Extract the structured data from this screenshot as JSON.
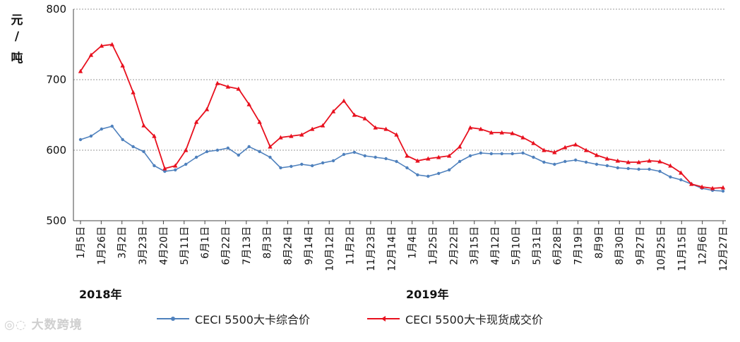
{
  "chart_data": {
    "type": "line",
    "ylabel": [
      "元",
      "/",
      "吨"
    ],
    "ylim": [
      500,
      800
    ],
    "yticks": [
      500,
      600,
      700,
      800
    ],
    "grid": true,
    "legend_position": "bottom",
    "x_tick_labels": [
      "1月5日",
      "1月26日",
      "3月2日",
      "3月23日",
      "4月20日",
      "5月11日",
      "6月1日",
      "6月22日",
      "7月13日",
      "8月3日",
      "8月24日",
      "9月14日",
      "10月12日",
      "11月2日",
      "11月23日",
      "12月14日",
      "1月4日",
      "1月25日",
      "2月22日",
      "3月15日",
      "4月12日",
      "5月10日",
      "5月31日",
      "6月28日",
      "7月19日",
      "8月9日",
      "8月30日",
      "9月27日",
      "10月25日",
      "11月15日",
      "12月6日",
      "12月27日"
    ],
    "year_labels": [
      {
        "text": "2018年",
        "at_index": 0
      },
      {
        "text": "2019年",
        "at_index": 16
      }
    ],
    "colors": {
      "series1": "#4f81bd",
      "series2": "#e8101e",
      "grid": "#9a9a9a"
    },
    "series": [
      {
        "name": "CECI 5500大卡综合价",
        "values": [
          615,
          620,
          630,
          634,
          615,
          605,
          598,
          578,
          570,
          572,
          580,
          590,
          598,
          600,
          603,
          593,
          605,
          598,
          590,
          575,
          577,
          580,
          578,
          582,
          585,
          594,
          597,
          592,
          590,
          588,
          584,
          575,
          565,
          563,
          567,
          572,
          584,
          592,
          596,
          595,
          595,
          595,
          596,
          590,
          583,
          580,
          584,
          586,
          583,
          580,
          578,
          575,
          574,
          573,
          573,
          570,
          562,
          558,
          552,
          546,
          543,
          542
        ]
      },
      {
        "name": "CECI 5500大卡现货成交价",
        "values": [
          712,
          735,
          748,
          750,
          720,
          682,
          635,
          620,
          574,
          578,
          600,
          640,
          658,
          695,
          690,
          687,
          665,
          640,
          605,
          618,
          620,
          622,
          630,
          635,
          655,
          670,
          650,
          645,
          632,
          630,
          622,
          592,
          585,
          588,
          590,
          592,
          605,
          632,
          630,
          625,
          625,
          624,
          618,
          610,
          600,
          597,
          604,
          608,
          600,
          593,
          588,
          585,
          583,
          583,
          585,
          584,
          578,
          568,
          552,
          548,
          546,
          547
        ]
      }
    ]
  },
  "legend": {
    "series1_label": "CECI 5500大卡综合价",
    "series2_label": "CECI 5500大卡现货成交价"
  },
  "watermark": {
    "text": "大数跨境",
    "icon": "logo-icon"
  }
}
